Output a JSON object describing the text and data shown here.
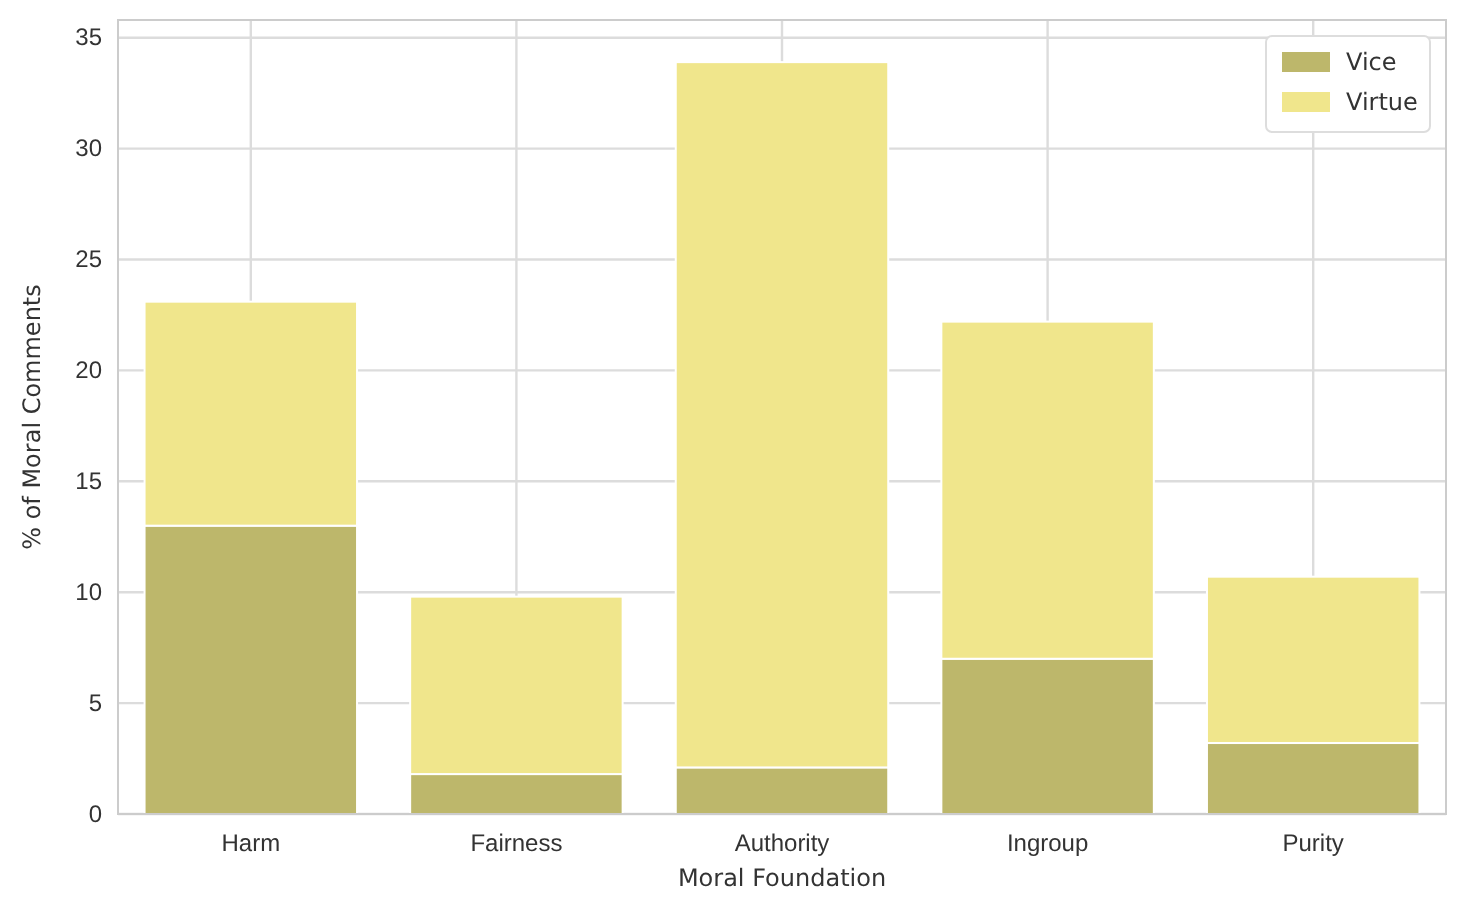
{
  "chart_data": {
    "type": "bar",
    "stacked": true,
    "xlabel": "Moral Foundation",
    "ylabel": "% of Moral Comments",
    "categories": [
      "Harm",
      "Fairness",
      "Authority",
      "Ingroup",
      "Purity"
    ],
    "series": [
      {
        "name": "Vice",
        "color": "#bdb76b",
        "values": [
          13.0,
          1.8,
          2.1,
          7.0,
          3.2
        ]
      },
      {
        "name": "Virtue",
        "color": "#f0e68c",
        "values": [
          10.1,
          8.0,
          31.8,
          15.2,
          7.5
        ]
      }
    ],
    "ylim": [
      0,
      35.8
    ],
    "yticks": [
      0,
      5,
      10,
      15,
      20,
      25,
      30,
      35
    ],
    "grid": true,
    "legend": "top right"
  }
}
